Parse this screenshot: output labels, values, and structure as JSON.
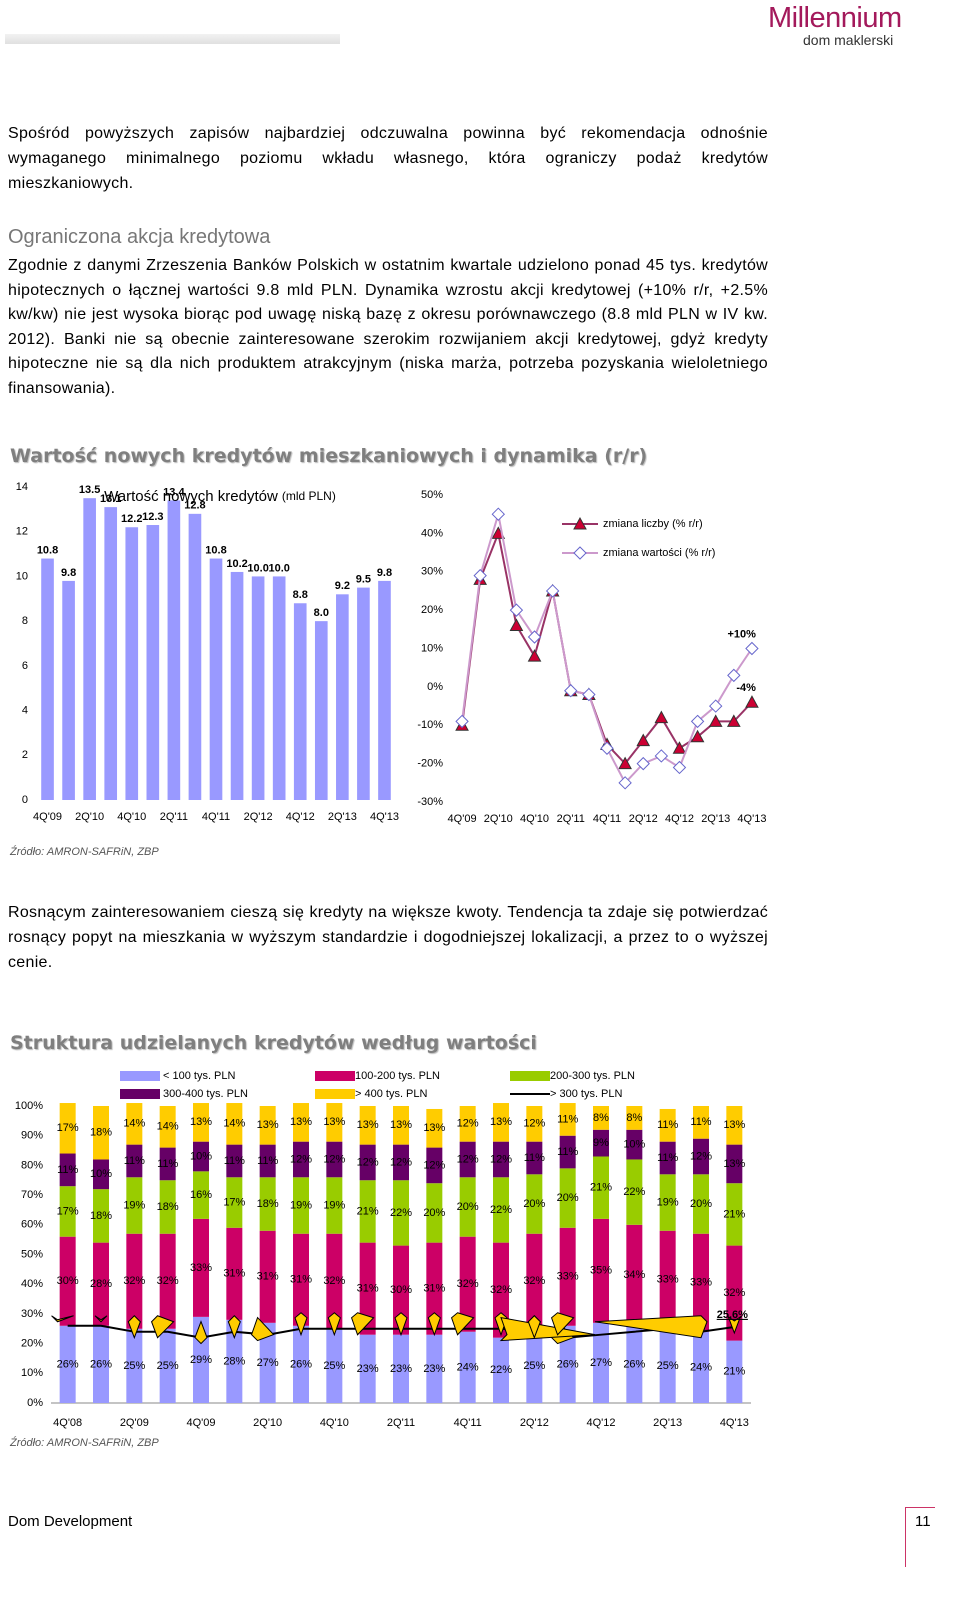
{
  "header": {
    "logo": "Millennium",
    "logo_subtitle": "dom maklerski"
  },
  "intro": "Spośród powyższych zapisów najbardziej odczuwalna powinna być rekomendacja odnośnie wymaganego minimalnego poziomu wkładu własnego, która ograniczy podaż kredytów mieszkaniowych.",
  "section": {
    "heading": "Ograniczona akcja kredytowa",
    "text": "Zgodnie z danymi Zrzeszenia Banków Polskich w ostatnim kwartale udzielono ponad 45 tys. kredytów hipotecznych o łącznej wartości 9.8 mld PLN. Dynamika wzrostu akcji kredytowej (+10% r/r, +2.5% kw/kw) nie jest wysoka biorąc pod uwagę niską bazę z okresu porównawczego (8.8 mld PLN w IV kw. 2012). Banki nie są obecnie zainteresowane szerokim rozwijaniem akcji kredytowej, gdyż kredyty hipoteczne nie są dla nich produktem atrakcyjnym (niska marża, potrzeba pozyskania wieloletniego finansowania)."
  },
  "figure_titles": [
    "Wartość nowych kredytów mieszkaniowych i dynamika (r/r)",
    "Struktura udzielanych kredytów według wartości"
  ],
  "sources": [
    "Źródło: AMRON-SAFRiN, ZBP",
    "Źródło: AMRON-SAFRiN, ZBP"
  ],
  "closing": "Rosnącym zainteresowaniem cieszą się kredyty na większe kwoty. Tendencja ta zdaje się potwierdzać rosnący popyt na mieszkania w wyższym standardzie i dogodniejszej lokalizacji, a przez to o wyższej cenie.",
  "footer": {
    "company": "Dom Development",
    "page": "11"
  },
  "chart_data": [
    {
      "type": "bar",
      "title": "Wartość nowych kredytów",
      "subtitle": "(mld PLN)",
      "categories": [
        "4Q'09",
        null,
        "2Q'10",
        null,
        "4Q'10",
        null,
        "2Q'11",
        null,
        "4Q'11",
        null,
        "2Q'12",
        null,
        "4Q'12",
        null,
        "2Q'13",
        null,
        "4Q'13"
      ],
      "values": [
        10.8,
        9.8,
        13.5,
        13.1,
        12.2,
        12.3,
        13.4,
        12.8,
        10.8,
        10.2,
        10.0,
        10.0,
        8.8,
        8.0,
        9.2,
        9.5,
        9.8
      ],
      "value_labels": [
        "10.8",
        "9.8",
        "13.5",
        "13.1",
        "12.2",
        "12.3",
        "13.4",
        "12.8",
        "10.8",
        "10.2",
        "10.0",
        "10.0",
        "8.8",
        "8.0",
        "9.2",
        "9.5",
        "9.8"
      ],
      "color": "#9999ff",
      "ylim": [
        0,
        14
      ],
      "yticks": [
        0,
        2,
        4,
        6,
        8,
        10,
        12,
        14
      ]
    },
    {
      "type": "line",
      "categories": [
        "4Q'09",
        null,
        "2Q'10",
        null,
        "4Q'10",
        null,
        "2Q'11",
        null,
        "4Q'11",
        null,
        "2Q'12",
        null,
        "4Q'12",
        null,
        "2Q'13",
        null,
        "4Q'13"
      ],
      "series": [
        {
          "name": "zmiana liczby (% r/r)",
          "color": "#993366",
          "marker": "triangle",
          "marker_color": "#cc0033",
          "values": [
            -10,
            28,
            40,
            16,
            8,
            25,
            -1,
            -2,
            -15,
            -20,
            -14,
            -8,
            -16,
            -13,
            -9,
            -9,
            -4
          ]
        },
        {
          "name": "zmiana wartości (% r/r)",
          "color": "#cc99cc",
          "marker": "diamond",
          "marker_color": "#ffffff",
          "values": [
            -9,
            29,
            45,
            20,
            13,
            25,
            -1,
            -2,
            -16,
            -25,
            -20,
            -18,
            -21,
            -9,
            -5,
            3,
            10
          ]
        }
      ],
      "annotations": [
        {
          "text": "-4%",
          "color": "#cc0033"
        },
        {
          "text": "+10%",
          "color": "#000000"
        }
      ],
      "ylim": [
        -30,
        50
      ],
      "yticks": [
        {
          "value": -30,
          "label": "-30%"
        },
        {
          "value": -20,
          "label": "-20%"
        },
        {
          "value": -10,
          "label": "-10%"
        },
        {
          "value": 0,
          "label": "0%"
        },
        {
          "value": 10,
          "label": "10%"
        },
        {
          "value": 20,
          "label": "20%"
        },
        {
          "value": 30,
          "label": "30%"
        },
        {
          "value": 40,
          "label": "40%"
        },
        {
          "value": 50,
          "label": "50%"
        }
      ]
    },
    {
      "type": "stacked_bar",
      "categories": [
        "4Q'08",
        null,
        "2Q'09",
        null,
        "4Q'09",
        null,
        "2Q'10",
        null,
        "4Q'10",
        null,
        "2Q'11",
        null,
        "4Q'11",
        null,
        "2Q'12",
        null,
        "4Q'12",
        null,
        "2Q'13",
        null,
        "4Q'13"
      ],
      "series": [
        {
          "name": "< 100 tys. PLN",
          "color": "#9999ff",
          "values": [
            26,
            26,
            25,
            25,
            29,
            28,
            27,
            26,
            25,
            23,
            23,
            23,
            24,
            22,
            25,
            26,
            27,
            26,
            25,
            24,
            21
          ],
          "value_labels": [
            "26%",
            "26%",
            "25%",
            "25%",
            "29%",
            "28%",
            "27%",
            "26%",
            "25%",
            "23%",
            "23%",
            "23%",
            "24%",
            "22%",
            "25%",
            "26%",
            "27%",
            "26%",
            "25%",
            "24%",
            "21%"
          ]
        },
        {
          "name": "100-200 tys. PLN",
          "color": "#cc0066",
          "values": [
            30,
            28,
            32,
            32,
            33,
            31,
            31,
            31,
            32,
            31,
            30,
            31,
            32,
            32,
            32,
            33,
            35,
            34,
            33,
            33,
            32
          ],
          "value_labels": [
            "30%",
            "28%",
            "32%",
            "32%",
            "33%",
            "31%",
            "31%",
            "31%",
            "32%",
            "31%",
            "30%",
            "31%",
            "32%",
            "32%",
            "32%",
            "33%",
            "35%",
            "34%",
            "33%",
            "33%",
            "32%"
          ]
        },
        {
          "name": "200-300 tys. PLN",
          "color": "#99cc00",
          "values": [
            17,
            18,
            19,
            18,
            16,
            17,
            18,
            19,
            19,
            21,
            22,
            20,
            20,
            22,
            20,
            20,
            21,
            22,
            19,
            20,
            21
          ],
          "value_labels": [
            "17%",
            "18%",
            "19%",
            "18%",
            "16%",
            "17%",
            "18%",
            "19%",
            "19%",
            "21%",
            "22%",
            "20%",
            "20%",
            "22%",
            "20%",
            "20%",
            "21%",
            "22%",
            "19%",
            "20%",
            "21%"
          ]
        },
        {
          "name": "300-400 tys. PLN",
          "color": "#660066",
          "values": [
            11,
            10,
            11,
            11,
            10,
            11,
            11,
            12,
            12,
            12,
            12,
            12,
            12,
            12,
            11,
            11,
            9,
            10,
            11,
            12,
            13
          ],
          "value_labels": [
            "11%",
            "10%",
            "11%",
            "11%",
            "10%",
            "11%",
            "11%",
            "12%",
            "12%",
            "12%",
            "12%",
            "12%",
            "12%",
            "12%",
            "11%",
            "11%",
            "9%",
            "10%",
            "11%",
            "12%",
            "13%"
          ]
        },
        {
          "name": "> 400 tys. PLN",
          "color": "#ffcc00",
          "values": [
            17,
            18,
            14,
            14,
            13,
            14,
            13,
            13,
            13,
            13,
            13,
            13,
            12,
            13,
            12,
            11,
            8,
            8,
            11,
            11,
            13
          ],
          "value_labels": [
            "17%",
            "18%",
            "14%",
            "14%",
            "13%",
            "14%",
            "13%",
            "13%",
            "13%",
            "13%",
            "13%",
            "13%",
            "12%",
            "13%",
            "12%",
            "11%",
            "8%",
            "8%",
            "11%",
            "11%",
            "13%"
          ]
        },
        {
          "name": "> 300 tys. PLN",
          "type": "line",
          "color": "#000000",
          "marker_color": "#ffcc00",
          "values": [
            26,
            26,
            24,
            24,
            22,
            24,
            23,
            25,
            25,
            25,
            25,
            25,
            25,
            25,
            24,
            22,
            23,
            24,
            25,
            24,
            25.6
          ],
          "value_labels": [
            null,
            null,
            null,
            null,
            null,
            null,
            null,
            null,
            null,
            null,
            null,
            null,
            null,
            null,
            null,
            null,
            null,
            null,
            null,
            null,
            "25.6%"
          ]
        }
      ],
      "ylim": [
        0,
        100
      ],
      "yticks": [
        {
          "value": 0,
          "label": "0%"
        },
        {
          "value": 10,
          "label": "10%"
        },
        {
          "value": 20,
          "label": "20%"
        },
        {
          "value": 30,
          "label": "30%"
        },
        {
          "value": 40,
          "label": "40%"
        },
        {
          "value": 50,
          "label": "50%"
        },
        {
          "value": 60,
          "label": "60%"
        },
        {
          "value": 70,
          "label": "70%"
        },
        {
          "value": 80,
          "label": "80%"
        },
        {
          "value": 90,
          "label": "90%"
        },
        {
          "value": 100,
          "label": "100%"
        }
      ]
    }
  ]
}
